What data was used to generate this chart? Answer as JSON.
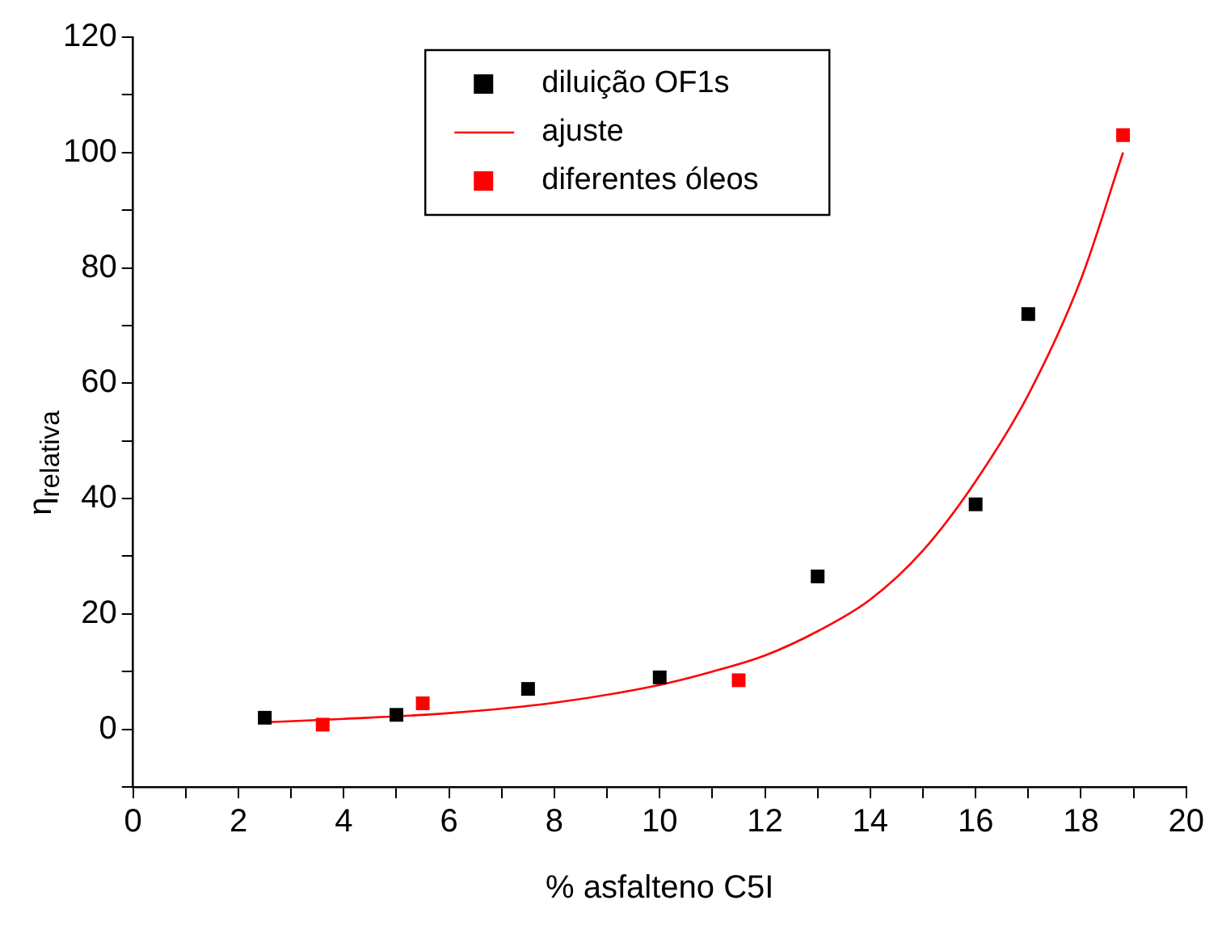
{
  "chart_data": {
    "type": "scatter",
    "xlabel": "% asfalteno C5I",
    "ylabel": "η$_{relativa}$",
    "xlim": [
      0,
      20
    ],
    "xticks": [
      0,
      {
        "value": 1,
        "label": null
      },
      2,
      {
        "value": 3,
        "label": null
      },
      4,
      {
        "value": 5,
        "label": null
      },
      6,
      {
        "value": 7,
        "label": null
      },
      8,
      {
        "value": 9,
        "label": null
      },
      10,
      {
        "value": 11,
        "label": null
      },
      12,
      {
        "value": 13,
        "label": null
      },
      14,
      {
        "value": 15,
        "label": null
      },
      16,
      {
        "value": 17,
        "label": null
      },
      18,
      {
        "value": 19,
        "label": null
      },
      20
    ],
    "ylim": [
      -10,
      120
    ],
    "yticks": [
      {
        "value": -10,
        "label": null
      },
      0,
      {
        "value": 10,
        "label": null
      },
      20,
      {
        "value": 30,
        "label": null
      },
      40,
      {
        "value": 50,
        "label": null
      },
      60,
      {
        "value": 70,
        "label": null
      },
      80,
      {
        "value": 90,
        "label": null
      },
      100,
      {
        "value": 110,
        "label": null
      },
      120
    ],
    "grid": false,
    "legend": "top",
    "series": [
      {
        "name": "diluição OF1s",
        "marker": "square",
        "color": "#000000",
        "x": [
          2.5,
          5,
          7.5,
          10,
          13,
          16,
          17
        ],
        "values": [
          2,
          2.5,
          7,
          9,
          26.5,
          39,
          72
        ]
      },
      {
        "name": "ajuste",
        "type": "line",
        "marker": "none",
        "color": "#ff0000",
        "x": [
          2.5,
          4,
          6,
          8,
          10,
          11,
          12,
          13,
          14,
          15,
          16,
          17,
          18,
          18.8
        ],
        "values": [
          1.2,
          1.8,
          2.8,
          4.6,
          7.7,
          10,
          12.8,
          17,
          22.5,
          31,
          43,
          58,
          78,
          100
        ]
      },
      {
        "name": "diferentes óleos",
        "marker": "square",
        "color": "#ff0000",
        "x": [
          3.6,
          5.5,
          11.5,
          18.8
        ],
        "values": [
          0.8,
          4.5,
          8.5,
          103
        ]
      }
    ]
  }
}
